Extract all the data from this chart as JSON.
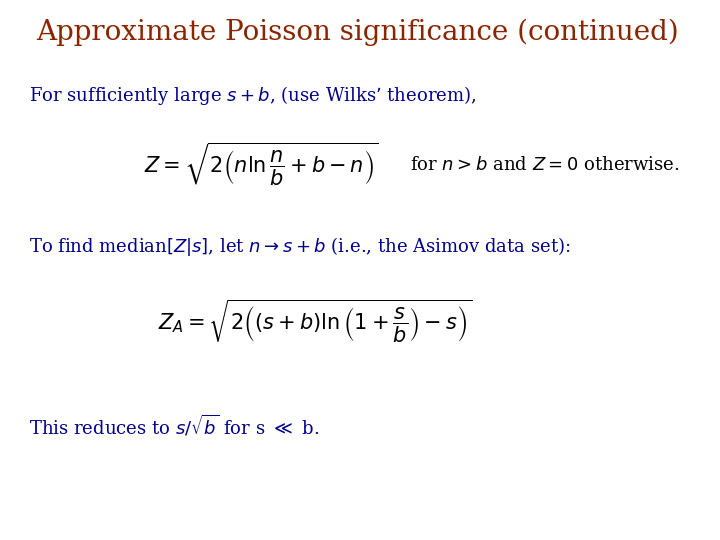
{
  "title": "Approximate Poisson significance (continued)",
  "title_color": "#8B2500",
  "title_fontsize": 20,
  "body_color": "#00008B",
  "background_color": "#ffffff",
  "line1": "For sufficiently large $s + b$, (use Wilks’ theorem),",
  "formula1": "$Z = \\sqrt{2\\left(n\\ln\\dfrac{n}{b} + b - n\\right)}$",
  "formula1_suffix": "for $n > b$ and $Z = 0$ otherwise.",
  "line2": "To find median$[Z|s]$, let $n \\rightarrow s + b$ (i.e., the Asimov data set):",
  "formula2": "$Z_A = \\sqrt{2\\left((s+b)\\ln\\left(1+\\dfrac{s}{b}\\right) - s\\right)}$",
  "line3": "This reduces to $s/\\sqrt{b}$ for s $\\ll$ b.",
  "text_fontsize": 13,
  "formula_fontsize": 15
}
